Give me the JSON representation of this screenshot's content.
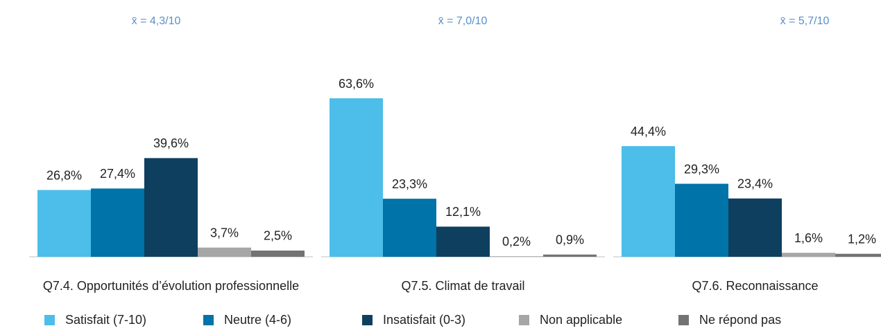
{
  "chart_data": {
    "type": "bar",
    "categories": [
      "Q7.4. Opportunités d’évolution professionnelle",
      "Q7.5. Climat de travail",
      "Q7.6. Reconnaissance"
    ],
    "annotations": [
      "x̄ = 4,3/10",
      "x̄ = 7,0/10",
      "x̄ = 5,7/10"
    ],
    "series": [
      {
        "name": "Satisfait (7-10)",
        "color": "#4dbde9",
        "values": [
          26.8,
          63.6,
          44.4
        ],
        "value_labels": [
          "26,8%",
          "63,6%",
          "44,4%"
        ]
      },
      {
        "name": "Neutre (4-6)",
        "color": "#0073a8",
        "values": [
          27.4,
          23.3,
          29.3
        ],
        "value_labels": [
          "27,4%",
          "23,3%",
          "29,3%"
        ]
      },
      {
        "name": "Insatisfait (0-3)",
        "color": "#0e3f5f",
        "values": [
          39.6,
          12.1,
          23.4
        ],
        "value_labels": [
          "39,6%",
          "12,1%",
          "23,4%"
        ]
      },
      {
        "name": "Non applicable",
        "color": "#a6a6a6",
        "values": [
          3.7,
          0.2,
          1.6
        ],
        "value_labels": [
          "3,7%",
          "0,2%",
          "1,6%"
        ]
      },
      {
        "name": "Ne répond pas",
        "color": "#737373",
        "values": [
          2.5,
          0.9,
          1.2
        ],
        "value_labels": [
          "2,5%",
          "0,9%",
          "1,2%"
        ]
      }
    ]
  }
}
